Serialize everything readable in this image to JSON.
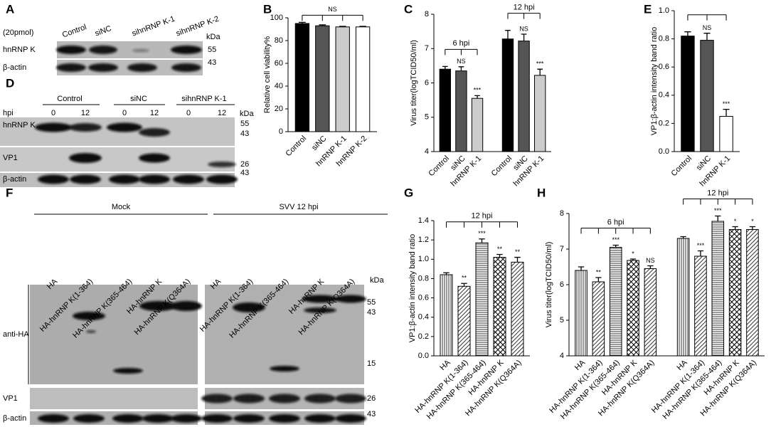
{
  "panel_labels": {
    "A": "A",
    "D": "D",
    "F": "F"
  },
  "blot_A": {
    "amount": "(20pmol)",
    "lanes": [
      "Control",
      "siNC",
      "sihnRNP K-1",
      "sihnRNP K-2"
    ],
    "rows": [
      "hnRNP K",
      "β-actin"
    ],
    "kda": "kDa",
    "markers": [
      "55",
      "43"
    ]
  },
  "blot_D": {
    "groups": [
      "Control",
      "siNC",
      "sihnRNP K-1"
    ],
    "hpi": "hpi",
    "times": [
      "0",
      "12",
      "0",
      "12",
      "0",
      "12"
    ],
    "rows": [
      "hnRNP K",
      "VP1",
      "β-actin"
    ],
    "kda": "kDa",
    "markers": [
      "55",
      "43",
      "26",
      "43"
    ]
  },
  "blot_F": {
    "conditions": [
      "Mock",
      "SVV 12 hpi"
    ],
    "lanes": [
      "HA",
      "HA-hnRNP K(1-364)",
      "HA-hnRNP K(365-464)",
      "HA-hnRNP K",
      "HA-hnRNP K(Q364A)",
      "HA",
      "HA-hnRNP K(1-364)",
      "HA-hnRNP K(365-464)",
      "HA-hnRNP K",
      "HA-hnRNP K(Q364A)"
    ],
    "rows": [
      "anti-HA",
      "VP1",
      "β-actin"
    ],
    "kda": "kDa",
    "markers": [
      "55",
      "43",
      "15",
      "26",
      "43"
    ]
  },
  "chart_data": [
    {
      "type": "bar",
      "label": "B",
      "ylabel": "Relative cell viability%",
      "ylim": [
        0,
        100
      ],
      "yticks": [
        0,
        20,
        40,
        60,
        80,
        100
      ],
      "groups": [
        {
          "label": "NS",
          "categories": [
            "Control",
            "siNC",
            "hnRNP K-1",
            "hnRNP K-2"
          ],
          "values": [
            95,
            93,
            92,
            92
          ],
          "errors": [
            1,
            0.8,
            0.5,
            0.5
          ],
          "colors": [
            "#000000",
            "#555555",
            "#cccccc",
            "#ffffff"
          ]
        }
      ]
    },
    {
      "type": "bar",
      "label": "C",
      "ylabel": "Virus titer(logTCID50/ml)",
      "ylim": [
        4,
        8
      ],
      "yticks": [
        4,
        5,
        6,
        7,
        8
      ],
      "groups": [
        {
          "label": "6 hpi",
          "categories": [
            "Control",
            "siNC",
            "hnRNP K-1"
          ],
          "values": [
            6.4,
            6.35,
            5.55
          ],
          "errors": [
            0.08,
            0.12,
            0.08
          ],
          "significance": [
            null,
            "NS",
            "***"
          ],
          "colors": [
            "#000000",
            "#555555",
            "#cccccc"
          ]
        },
        {
          "label": "12 hpi",
          "categories": [
            "Control",
            "siNC",
            "hnRNP K-1"
          ],
          "values": [
            7.28,
            7.22,
            6.22
          ],
          "errors": [
            0.25,
            0.2,
            0.18
          ],
          "significance": [
            null,
            "NS",
            "***"
          ],
          "colors": [
            "#000000",
            "#555555",
            "#cccccc"
          ]
        }
      ]
    },
    {
      "type": "bar",
      "label": "E",
      "ylabel": "VP1:β-actin  intensity band ratio",
      "ylim": [
        0,
        1
      ],
      "yticks": [
        {
          "value": 0,
          "label": "0.0"
        },
        0.2,
        0.4,
        0.6,
        0.8,
        {
          "value": 1,
          "label": "1.0"
        }
      ],
      "groups": [
        {
          "categories": [
            "Control",
            "siNC",
            "hnRNP K-1"
          ],
          "values": [
            0.82,
            0.79,
            0.25
          ],
          "errors": [
            0.03,
            0.05,
            0.05
          ],
          "significance": [
            null,
            "NS",
            "***"
          ],
          "colors": [
            "#000000",
            "#555555",
            "#ffffff"
          ]
        }
      ]
    },
    {
      "type": "bar",
      "label": "G",
      "ylabel": "VP1:β-actin  intensity band ratio",
      "ylim": [
        0,
        1.4
      ],
      "yticks": [
        {
          "value": 0,
          "label": "0.0"
        },
        0.2,
        0.4,
        0.6,
        0.8,
        {
          "value": 1,
          "label": "1.0"
        },
        1.2,
        1.4
      ],
      "groups": [
        {
          "label": "12 hpi",
          "categories": [
            "HA",
            "HA-hnRNP K(1-364)",
            "HA-hnRNP K(365-464)",
            "HA-hnRNP K",
            "HA-hnRNP K(Q364A)"
          ],
          "values": [
            0.84,
            0.72,
            1.17,
            1.02,
            0.97
          ],
          "errors": [
            0.02,
            0.03,
            0.04,
            0.03,
            0.05
          ],
          "significance": [
            null,
            "**",
            "***",
            "**",
            "**"
          ],
          "patterns": [
            "vertical",
            "diagonal",
            "horizontal",
            "crosshatch",
            "diagonal"
          ]
        }
      ]
    },
    {
      "type": "bar",
      "label": "H",
      "ylabel": "Virus titer(logTCID50/ml)",
      "ylim": [
        4,
        8
      ],
      "yticks": [
        4,
        5,
        6,
        7,
        8
      ],
      "groups": [
        {
          "label": "6 hpi",
          "categories": [
            "HA",
            "HA-hnRNP K(1-364)",
            "HA-hnRNP K(365-464)",
            "HA-hnRNP K",
            "HA-hnRNP K(Q364A)"
          ],
          "values": [
            6.4,
            6.08,
            7.05,
            6.68,
            6.45
          ],
          "errors": [
            0.1,
            0.12,
            0.06,
            0.04,
            0.08
          ],
          "significance": [
            null,
            "**",
            "***",
            "*",
            "NS"
          ],
          "patterns": [
            "vertical",
            "diagonal",
            "horizontal",
            "crosshatch",
            "diagonal"
          ]
        },
        {
          "label": "12 hpi",
          "categories": [
            "HA",
            "HA-hnRNP K(1-364)",
            "HA-hnRNP K(365-464)",
            "HA-hnRNP K",
            "HA-hnRNP K(Q364A)"
          ],
          "values": [
            7.3,
            6.8,
            7.78,
            7.55,
            7.55
          ],
          "errors": [
            0.05,
            0.15,
            0.15,
            0.08,
            0.08
          ],
          "significance": [
            null,
            "***",
            "***",
            "*",
            "*"
          ],
          "patterns": [
            "vertical",
            "diagonal",
            "horizontal",
            "crosshatch",
            "diagonal"
          ]
        }
      ]
    }
  ]
}
